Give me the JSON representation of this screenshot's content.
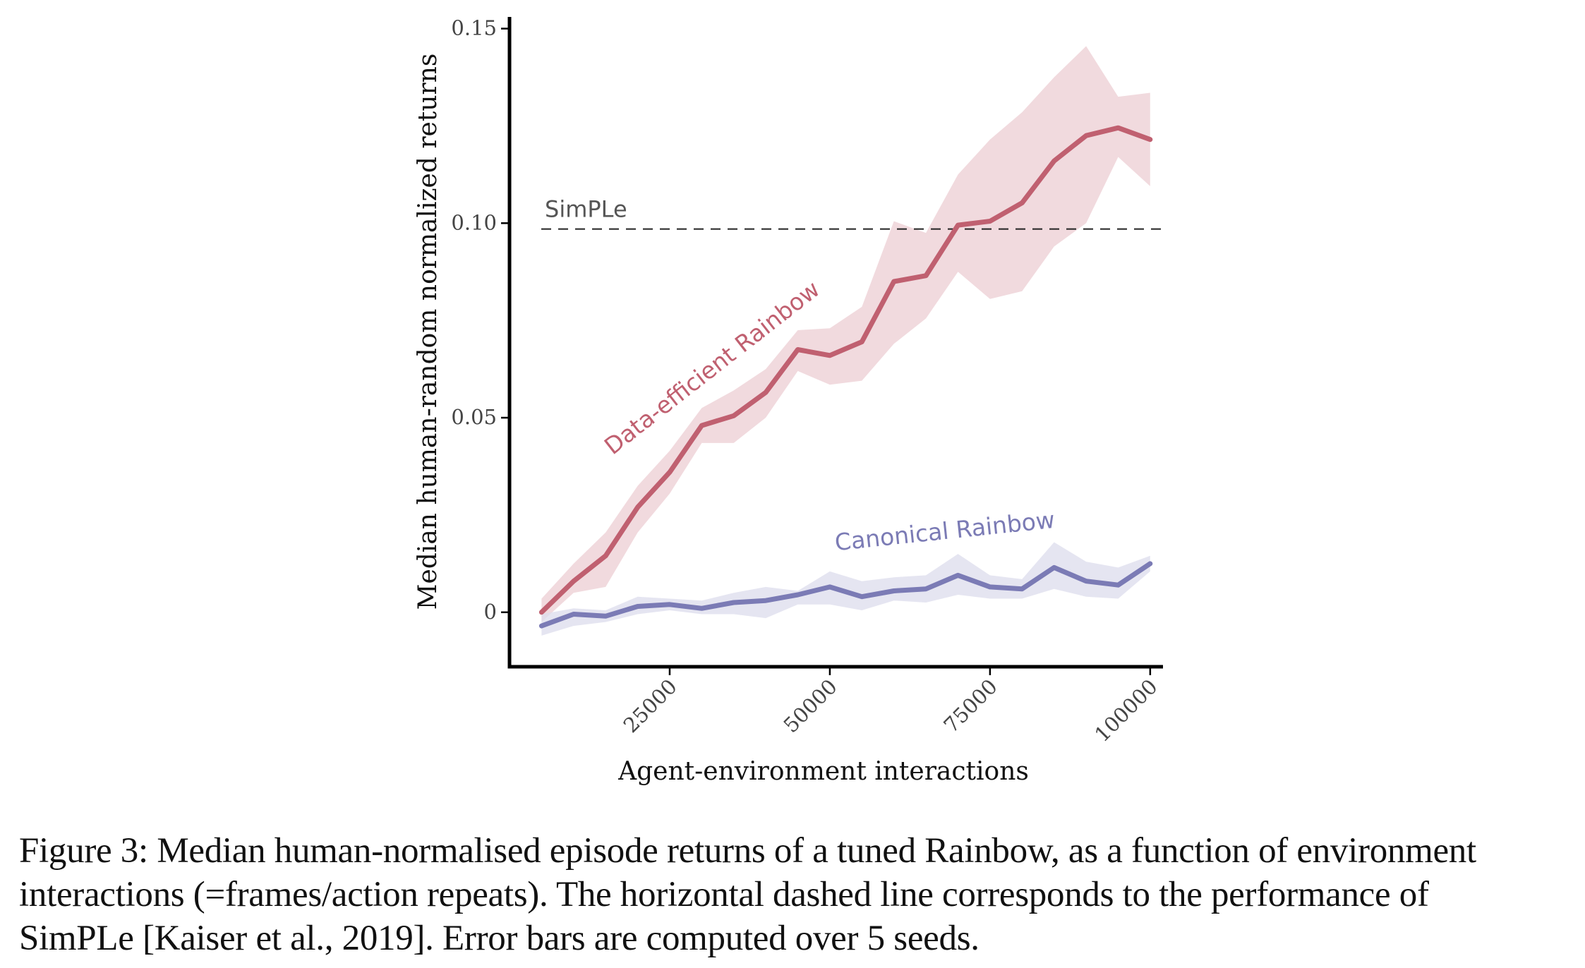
{
  "chart_data": {
    "type": "line",
    "xlabel": "Agent-environment interactions",
    "ylabel": "Median human-random normalized returns",
    "xlim": [
      0,
      102000
    ],
    "ylim": [
      -0.014,
      0.153
    ],
    "xticks": [
      25000,
      50000,
      75000,
      100000
    ],
    "xtick_labels": [
      "25000",
      "50000",
      "75000",
      "100000"
    ],
    "yticks": [
      0,
      0.05,
      0.1,
      0.15
    ],
    "ytick_labels": [
      "0",
      "0.05",
      "0.10",
      "0.15"
    ],
    "grid": false,
    "legend": "none",
    "reference_line": {
      "label": "SimPLe",
      "y": 0.0985,
      "style": "dashed",
      "color": "#222222"
    },
    "series": [
      {
        "name": "Data-efficient Rainbow",
        "color": "#c06070",
        "band_color": "#eccdd3",
        "x": [
          5000,
          10000,
          15000,
          20000,
          25000,
          30000,
          35000,
          40000,
          45000,
          50000,
          55000,
          60000,
          65000,
          70000,
          75000,
          80000,
          85000,
          90000,
          95000,
          100000
        ],
        "y": [
          0.0,
          0.008,
          0.0145,
          0.027,
          0.036,
          0.048,
          0.0505,
          0.0565,
          0.0675,
          0.066,
          0.0695,
          0.085,
          0.0865,
          0.0995,
          0.1005,
          0.1052,
          0.116,
          0.1225,
          0.1245,
          0.1215
        ],
        "lower": [
          -0.0025,
          0.005,
          0.0065,
          0.0205,
          0.0305,
          0.0435,
          0.0435,
          0.05,
          0.062,
          0.0585,
          0.0595,
          0.069,
          0.0755,
          0.0875,
          0.0805,
          0.0825,
          0.094,
          0.1,
          0.117,
          0.1095
        ],
        "upper": [
          0.0035,
          0.0125,
          0.0205,
          0.0325,
          0.0415,
          0.0525,
          0.057,
          0.0625,
          0.0725,
          0.073,
          0.0785,
          0.1005,
          0.0975,
          0.1125,
          0.1215,
          0.1285,
          0.1375,
          0.1455,
          0.1325,
          0.1335
        ],
        "label_angle": -38
      },
      {
        "name": "Canonical Rainbow",
        "color": "#7b7bb5",
        "band_color": "#dcdcec",
        "x": [
          5000,
          10000,
          15000,
          20000,
          25000,
          30000,
          35000,
          40000,
          45000,
          50000,
          55000,
          60000,
          65000,
          70000,
          75000,
          80000,
          85000,
          90000,
          95000,
          100000
        ],
        "y": [
          -0.0035,
          -0.0005,
          -0.001,
          0.0015,
          0.002,
          0.001,
          0.0025,
          0.003,
          0.0045,
          0.0065,
          0.004,
          0.0055,
          0.006,
          0.0095,
          0.0065,
          0.006,
          0.0115,
          0.008,
          0.007,
          0.0125
        ],
        "lower": [
          -0.006,
          -0.0035,
          -0.0025,
          -0.0005,
          0.0005,
          -0.0005,
          -0.0005,
          -0.0015,
          0.002,
          0.002,
          0.0005,
          0.003,
          0.0025,
          0.0045,
          0.0035,
          0.0035,
          0.006,
          0.004,
          0.0035,
          0.0105
        ],
        "upper": [
          -0.0005,
          0.001,
          0.0005,
          0.004,
          0.0035,
          0.003,
          0.005,
          0.0065,
          0.0055,
          0.0105,
          0.008,
          0.009,
          0.0095,
          0.015,
          0.0095,
          0.0085,
          0.018,
          0.013,
          0.0115,
          0.0145
        ],
        "label_angle": -6
      }
    ]
  },
  "caption": {
    "lines": [
      "Figure 3: Median human-normalised episode returns of a tuned Rainbow, as a function of environment",
      "interactions (=frames/action repeats). The horizontal dashed line corresponds to the performance of",
      "SimPLe [Kaiser et al., 2019]. Error bars are computed over 5 seeds."
    ]
  }
}
